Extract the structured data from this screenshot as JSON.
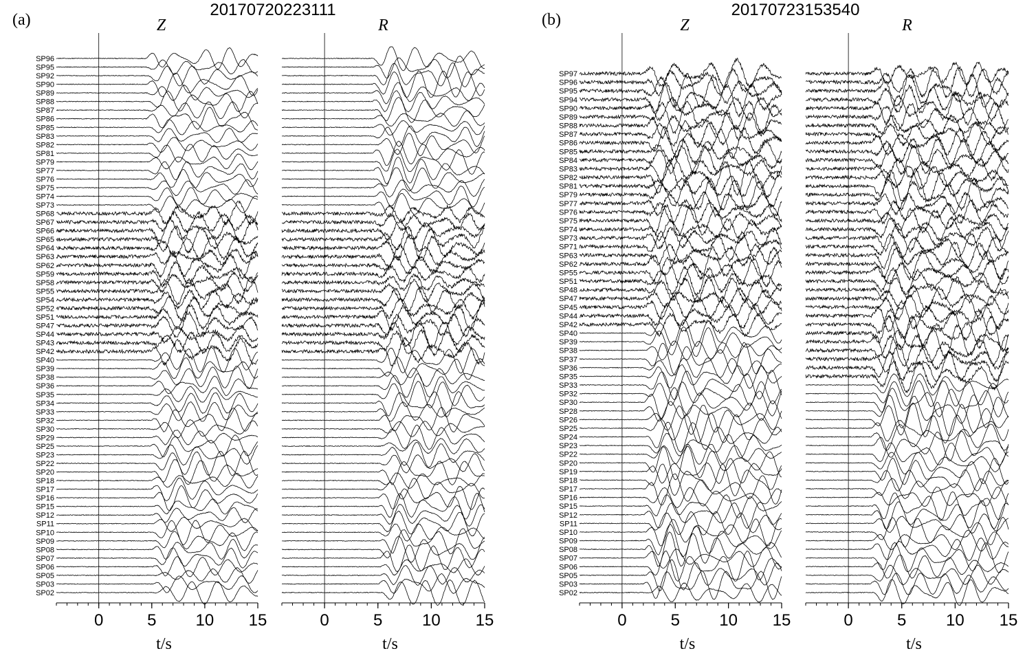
{
  "panels": [
    {
      "tag": "(a)",
      "title": "20170720223111",
      "stations": [
        "SP96",
        "SP95",
        "SP92",
        "SP90",
        "SP89",
        "SP88",
        "SP87",
        "SP86",
        "SP85",
        "SP83",
        "SP82",
        "SP81",
        "SP79",
        "SP77",
        "SP76",
        "SP75",
        "SP74",
        "SP73",
        "SP68",
        "SP67",
        "SP66",
        "SP65",
        "SP64",
        "SP63",
        "SP62",
        "SP59",
        "SP58",
        "SP55",
        "SP54",
        "SP52",
        "SP51",
        "SP47",
        "SP44",
        "SP43",
        "SP42",
        "SP40",
        "SP39",
        "SP38",
        "SP36",
        "SP35",
        "SP34",
        "SP33",
        "SP32",
        "SP30",
        "SP29",
        "SP25",
        "SP23",
        "SP22",
        "SP20",
        "SP18",
        "SP17",
        "SP16",
        "SP15",
        "SP12",
        "SP11",
        "SP10",
        "SP09",
        "SP08",
        "SP07",
        "SP06",
        "SP05",
        "SP03",
        "SP02"
      ],
      "charts": [
        {
          "type": "seismogram",
          "component": "Z",
          "xlim": [
            -4,
            15
          ],
          "xticks": [
            0,
            5,
            10,
            15
          ],
          "xlabel": "t/s"
        },
        {
          "type": "seismogram",
          "component": "R",
          "xlim": [
            -4,
            15
          ],
          "xticks": [
            0,
            5,
            10,
            15
          ],
          "xlabel": "t/s"
        }
      ]
    },
    {
      "tag": "(b)",
      "title": "20170723153540",
      "stations": [
        "SP97",
        "SP96",
        "SP95",
        "SP94",
        "SP90",
        "SP89",
        "SP88",
        "SP87",
        "SP86",
        "SP85",
        "SP84",
        "SP83",
        "SP82",
        "SP81",
        "SP79",
        "SP77",
        "SP76",
        "SP75",
        "SP74",
        "SP73",
        "SP71",
        "SP63",
        "SP62",
        "SP55",
        "SP51",
        "SP48",
        "SP47",
        "SP45",
        "SP44",
        "SP42",
        "SP40",
        "SP39",
        "SP38",
        "SP37",
        "SP36",
        "SP35",
        "SP33",
        "SP32",
        "SP30",
        "SP28",
        "SP26",
        "SP25",
        "SP24",
        "SP23",
        "SP22",
        "SP20",
        "SP19",
        "SP18",
        "SP17",
        "SP16",
        "SP15",
        "SP12",
        "SP11",
        "SP10",
        "SP09",
        "SP08",
        "SP07",
        "SP06",
        "SP05",
        "SP03",
        "SP02"
      ],
      "charts": [
        {
          "type": "seismogram",
          "component": "Z",
          "xlim": [
            -4,
            15
          ],
          "xticks": [
            0,
            5,
            10,
            15
          ],
          "xlabel": "t/s"
        },
        {
          "type": "seismogram",
          "component": "R",
          "xlim": [
            -4,
            15
          ],
          "xticks": [
            0,
            5,
            10,
            15
          ],
          "xlabel": "t/s"
        }
      ]
    }
  ]
}
